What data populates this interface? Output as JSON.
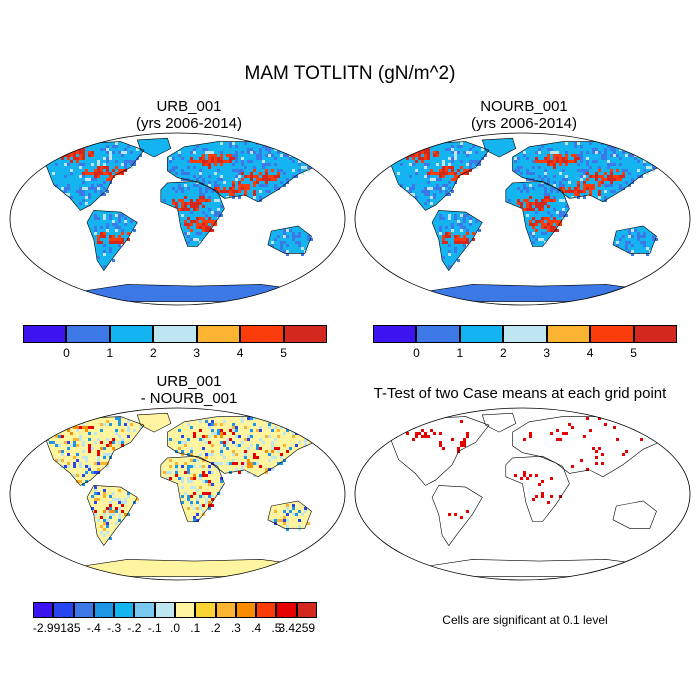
{
  "figure": {
    "title": "MAM TOTLITN (gN/m^2)"
  },
  "panels": [
    {
      "id": "urb",
      "title_line1": "URB_001",
      "title_line2": "(yrs 2006-2014)",
      "fill": "absolute"
    },
    {
      "id": "nourb",
      "title_line1": "NOURB_001",
      "title_line2": "(yrs 2006-2014)",
      "fill": "absolute"
    },
    {
      "id": "diff",
      "title_line1": "URB_001",
      "title_line2": "- NOURB_001",
      "fill": "difference"
    },
    {
      "id": "ttest",
      "title_line1": "T-Test of two Case means at each grid point",
      "title_line2": "",
      "fill": "significance",
      "note": "Cells are significant at 0.1 level"
    }
  ],
  "colorbars": {
    "absolute": {
      "colors": [
        "#3c14f0",
        "#3c78e6",
        "#14b4f0",
        "#bee6f0",
        "#fab432",
        "#fa3c0a",
        "#d2281e"
      ],
      "labels": [
        "0",
        "1",
        "2",
        "3",
        "4",
        "5"
      ]
    },
    "difference": {
      "colors": [
        "#3c14f0",
        "#2846f0",
        "#3c78e6",
        "#1e96e6",
        "#14b4f0",
        "#78c8f0",
        "#bee6f0",
        "#fff5a0",
        "#fad232",
        "#fab432",
        "#fa8c00",
        "#fa3c0a",
        "#e60000",
        "#d2281e"
      ],
      "labels": [
        "-2.9913",
        "-.5",
        "-.4",
        "-.3",
        "-.2",
        "-.1",
        ".0",
        ".1",
        ".2",
        ".3",
        ".4",
        ".5",
        "3.4259"
      ]
    }
  },
  "colors": {
    "ocean": "#ffffff",
    "coast": "#000000",
    "significant": "#e60000"
  }
}
